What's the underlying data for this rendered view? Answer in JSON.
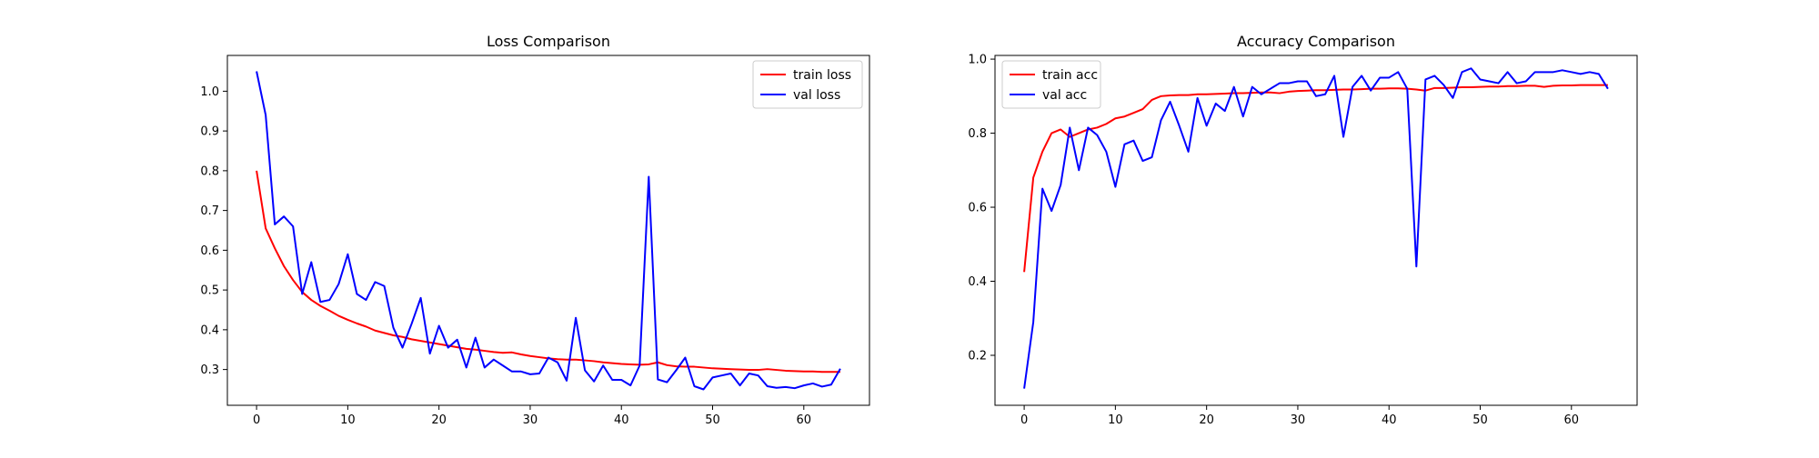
{
  "chart_data": [
    {
      "type": "line",
      "title": "Loss Comparison",
      "xlabel": "",
      "ylabel": "",
      "xlim": [
        -3.2,
        67.2
      ],
      "ylim": [
        0.21,
        1.09
      ],
      "xticks": [
        0,
        10,
        20,
        30,
        40,
        50,
        60
      ],
      "yticks": [
        0.3,
        0.4,
        0.5,
        0.6,
        0.7,
        0.8,
        0.9,
        1.0
      ],
      "ytick_labels": [
        "0.3",
        "0.4",
        "0.5",
        "0.6",
        "0.7",
        "0.8",
        "0.9",
        "1.0"
      ],
      "legend_position": "upper right",
      "grid": false,
      "series": [
        {
          "name": "train loss",
          "color": "#ff0000",
          "values": [
            0.8,
            0.655,
            0.605,
            0.56,
            0.525,
            0.495,
            0.475,
            0.46,
            0.448,
            0.435,
            0.425,
            0.416,
            0.408,
            0.398,
            0.392,
            0.386,
            0.382,
            0.376,
            0.372,
            0.368,
            0.364,
            0.36,
            0.356,
            0.352,
            0.35,
            0.347,
            0.344,
            0.342,
            0.343,
            0.338,
            0.334,
            0.331,
            0.328,
            0.326,
            0.325,
            0.325,
            0.323,
            0.321,
            0.318,
            0.316,
            0.314,
            0.313,
            0.312,
            0.313,
            0.318,
            0.311,
            0.308,
            0.307,
            0.307,
            0.305,
            0.303,
            0.302,
            0.301,
            0.3,
            0.299,
            0.299,
            0.301,
            0.299,
            0.297,
            0.296,
            0.295,
            0.295,
            0.294,
            0.294,
            0.294
          ]
        },
        {
          "name": "val loss",
          "color": "#0000ff",
          "values": [
            1.05,
            0.94,
            0.665,
            0.685,
            0.66,
            0.49,
            0.57,
            0.47,
            0.475,
            0.515,
            0.59,
            0.49,
            0.475,
            0.52,
            0.51,
            0.405,
            0.355,
            0.415,
            0.48,
            0.34,
            0.41,
            0.355,
            0.375,
            0.305,
            0.38,
            0.305,
            0.325,
            0.31,
            0.295,
            0.295,
            0.288,
            0.29,
            0.33,
            0.318,
            0.272,
            0.43,
            0.298,
            0.27,
            0.31,
            0.274,
            0.274,
            0.26,
            0.31,
            0.785,
            0.275,
            0.268,
            0.298,
            0.33,
            0.258,
            0.25,
            0.28,
            0.285,
            0.29,
            0.26,
            0.29,
            0.285,
            0.258,
            0.254,
            0.256,
            0.253,
            0.26,
            0.265,
            0.257,
            0.262,
            0.302
          ]
        }
      ]
    },
    {
      "type": "line",
      "title": "Accuracy Comparison",
      "xlabel": "",
      "ylabel": "",
      "xlim": [
        -3.2,
        67.2
      ],
      "ylim": [
        0.065,
        1.01
      ],
      "xticks": [
        0,
        10,
        20,
        30,
        40,
        50,
        60
      ],
      "yticks": [
        0.2,
        0.4,
        0.6,
        0.8,
        1.0
      ],
      "ytick_labels": [
        "0.2",
        "0.4",
        "0.6",
        "0.8",
        "1.0"
      ],
      "legend_position": "upper left",
      "grid": false,
      "series": [
        {
          "name": "train acc",
          "color": "#ff0000",
          "values": [
            0.425,
            0.68,
            0.75,
            0.8,
            0.81,
            0.79,
            0.8,
            0.81,
            0.815,
            0.825,
            0.84,
            0.845,
            0.855,
            0.865,
            0.89,
            0.9,
            0.902,
            0.903,
            0.903,
            0.905,
            0.905,
            0.906,
            0.907,
            0.908,
            0.908,
            0.909,
            0.91,
            0.91,
            0.908,
            0.912,
            0.914,
            0.915,
            0.916,
            0.916,
            0.917,
            0.918,
            0.918,
            0.919,
            0.92,
            0.92,
            0.921,
            0.921,
            0.92,
            0.918,
            0.915,
            0.922,
            0.922,
            0.923,
            0.924,
            0.924,
            0.925,
            0.926,
            0.926,
            0.927,
            0.927,
            0.928,
            0.928,
            0.925,
            0.928,
            0.929,
            0.929,
            0.93,
            0.93,
            0.93,
            0.93
          ]
        },
        {
          "name": "val acc",
          "color": "#0000ff",
          "values": [
            0.11,
            0.29,
            0.65,
            0.59,
            0.66,
            0.815,
            0.7,
            0.815,
            0.795,
            0.75,
            0.655,
            0.77,
            0.78,
            0.725,
            0.735,
            0.835,
            0.885,
            0.82,
            0.75,
            0.895,
            0.82,
            0.88,
            0.86,
            0.925,
            0.845,
            0.925,
            0.905,
            0.92,
            0.935,
            0.935,
            0.94,
            0.94,
            0.9,
            0.905,
            0.955,
            0.79,
            0.925,
            0.955,
            0.915,
            0.95,
            0.95,
            0.965,
            0.92,
            0.44,
            0.945,
            0.955,
            0.93,
            0.895,
            0.965,
            0.975,
            0.945,
            0.94,
            0.935,
            0.965,
            0.935,
            0.94,
            0.965,
            0.965,
            0.965,
            0.97,
            0.965,
            0.96,
            0.965,
            0.96,
            0.92
          ]
        }
      ]
    }
  ]
}
